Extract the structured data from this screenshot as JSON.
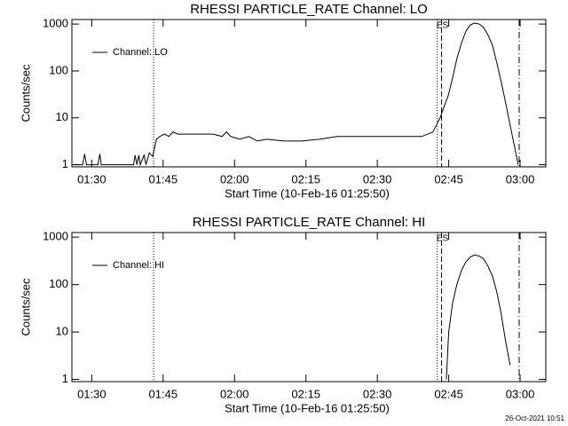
{
  "chart_data": [
    {
      "type": "line",
      "title": "RHESSI PARTICLE_RATE Channel: LO",
      "ylabel": "Counts/sec",
      "xlabel": "Start Time (10-Feb-16 01:25:50)",
      "log_y": true,
      "ylim": [
        0.9,
        1250
      ],
      "yticks": [
        1,
        10,
        100,
        1000
      ],
      "xlim": [
        85.83,
        185.4
      ],
      "xticks": [
        {
          "value": 90,
          "label": "01:30"
        },
        {
          "value": 105,
          "label": "01:45"
        },
        {
          "value": 120,
          "label": "02:00"
        },
        {
          "value": 135,
          "label": "02:15"
        },
        {
          "value": 150,
          "label": "02:30"
        },
        {
          "value": 165,
          "label": "02:45"
        },
        {
          "value": 180,
          "label": "03:00"
        }
      ],
      "legend": "upper-left",
      "annotation": "ES",
      "vlines": [
        {
          "x": 103.0,
          "style": "dotted"
        },
        {
          "x": 162.6,
          "style": "dotted"
        },
        {
          "x": 163.5,
          "style": "dashed"
        },
        {
          "x": 179.8,
          "style": "dash-dot"
        }
      ],
      "series": [
        {
          "name": "Channel: LO",
          "color": "#000000",
          "x": [
            86.3,
            88.1,
            88.5,
            88.9,
            91.3,
            91.7,
            92.0,
            98.8,
            99.1,
            99.5,
            99.9,
            100.2,
            101.0,
            101.4,
            102.1,
            102.8,
            103.6,
            104.3,
            105.3,
            106.2,
            107.1,
            108.1,
            109.9,
            113.6,
            115.5,
            117.4,
            118.3,
            119.2,
            121.1,
            123.0,
            124.8,
            126.7,
            130.4,
            134.1,
            137.9,
            141.6,
            145.3,
            149.0,
            152.8,
            156.5,
            159.3,
            160.6,
            161.7,
            162.4,
            163.2,
            163.9,
            164.9,
            165.8,
            166.7,
            167.7,
            168.6,
            169.5,
            170.4,
            171.4,
            172.3,
            173.2,
            174.2,
            175.1,
            176.0,
            177.0,
            177.9,
            178.8,
            179.6
          ],
          "values": [
            1,
            1,
            1.7,
            1,
            1,
            1.7,
            1,
            1,
            1.6,
            1,
            1.6,
            1,
            1.6,
            1,
            1.8,
            1.5,
            3.5,
            4,
            4.5,
            4,
            5,
            4.5,
            4.5,
            4.5,
            4.5,
            4,
            5,
            4,
            3.5,
            4,
            3.2,
            3.5,
            3.2,
            3.2,
            3.5,
            4,
            4,
            4,
            4,
            4,
            4,
            4.5,
            5,
            7,
            10,
            16,
            30,
            70,
            180,
            400,
            700,
            950,
            1050,
            1000,
            850,
            600,
            350,
            150,
            60,
            20,
            7,
            2.5,
            1
          ]
        }
      ]
    },
    {
      "type": "line",
      "title": "RHESSI PARTICLE_RATE Channel: HI",
      "ylabel": "Counts/sec",
      "xlabel": "Start Time (10-Feb-16 01:25:50)",
      "log_y": true,
      "ylim": [
        0.9,
        1250
      ],
      "yticks": [
        1,
        10,
        100,
        1000
      ],
      "xlim": [
        85.83,
        185.4
      ],
      "xticks": [
        {
          "value": 90,
          "label": "01:30"
        },
        {
          "value": 105,
          "label": "01:45"
        },
        {
          "value": 120,
          "label": "02:00"
        },
        {
          "value": 135,
          "label": "02:15"
        },
        {
          "value": 150,
          "label": "02:30"
        },
        {
          "value": 165,
          "label": "02:45"
        },
        {
          "value": 180,
          "label": "03:00"
        }
      ],
      "legend": "upper-left",
      "annotation": "ES",
      "vlines": [
        {
          "x": 103.0,
          "style": "dotted"
        },
        {
          "x": 162.6,
          "style": "dotted"
        },
        {
          "x": 163.5,
          "style": "dashed"
        },
        {
          "x": 179.8,
          "style": "dash-dot"
        }
      ],
      "series": [
        {
          "name": "Channel: HI",
          "color": "#000000",
          "x": [
            164.5,
            165.0,
            165.8,
            166.7,
            167.7,
            168.6,
            169.5,
            170.4,
            171.4,
            172.3,
            173.2,
            174.2,
            175.1,
            176.0,
            177.0,
            177.9
          ],
          "values": [
            1,
            10,
            40,
            100,
            200,
            300,
            380,
            420,
            400,
            350,
            250,
            150,
            70,
            25,
            6,
            2
          ]
        }
      ]
    }
  ],
  "footer": "26-Oct-2021 10:51"
}
